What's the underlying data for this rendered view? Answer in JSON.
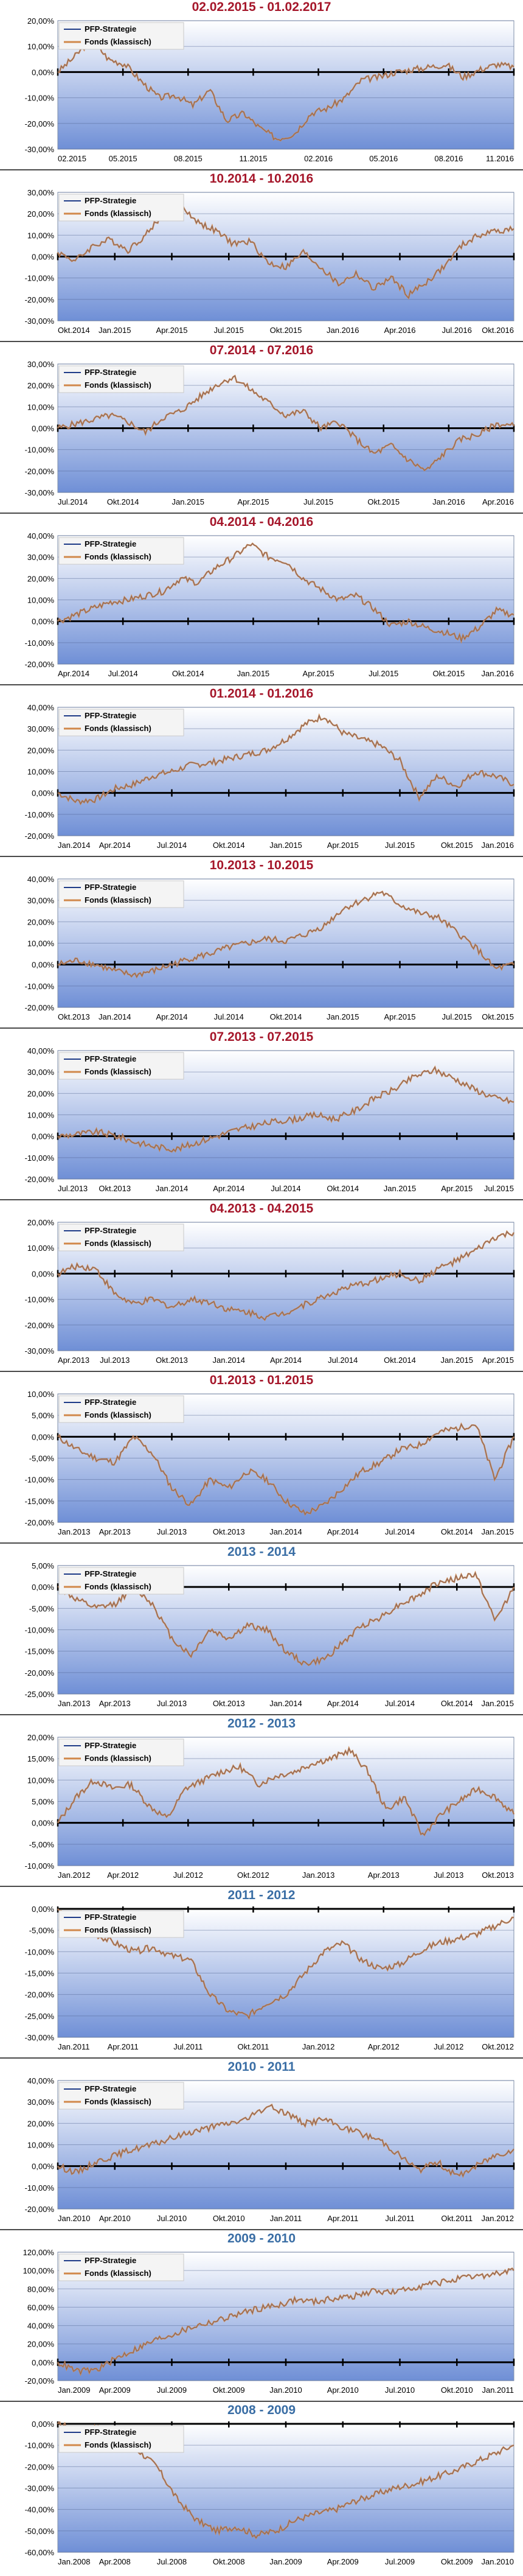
{
  "colors": {
    "red_title": "#a5162a",
    "blue_title": "#3a6ea5",
    "strategy": "#1f3c88",
    "fund": "#d1884a",
    "zero_axis": "#000000"
  },
  "legend": {
    "strategy": "PFP-Strategie",
    "fund": "Fonds (klassisch)"
  },
  "chart_data": [
    {
      "type": "line",
      "title": "02.02.2015 - 01.02.2017",
      "title_color": "red",
      "ylim": [
        -30,
        20
      ],
      "yticks": [
        "20,00%",
        "10,00%",
        "0,00%",
        "-10,00%",
        "-20,00%",
        "-30,00%"
      ],
      "xticks": [
        "02.2015",
        "05.2015",
        "08.2015",
        "11.2015",
        "02.2016",
        "05.2016",
        "08.2016",
        "11.2016"
      ],
      "series": [
        {
          "name": "Fonds (klassisch)",
          "values": [
            0,
            6,
            13,
            5,
            3,
            -4,
            -10,
            -9,
            -13,
            -7,
            -19,
            -16,
            -22,
            -26,
            -24,
            -16,
            -14,
            -10,
            -3,
            -2,
            0,
            1,
            2,
            3,
            -2,
            1,
            3,
            2
          ]
        }
      ]
    },
    {
      "type": "line",
      "title": "10.2014 - 10.2016",
      "title_color": "red",
      "ylim": [
        -30,
        30
      ],
      "yticks": [
        "30,00%",
        "20,00%",
        "10,00%",
        "0,00%",
        "-10,00%",
        "-20,00%",
        "-30,00%"
      ],
      "xticks": [
        "Okt.2014",
        "Jan.2015",
        "Apr.2015",
        "Jul.2015",
        "Okt.2015",
        "Jan.2016",
        "Apr.2016",
        "Jul.2016",
        "Okt.2016"
      ],
      "series": [
        {
          "name": "Fonds (klassisch)",
          "values": [
            2,
            -2,
            5,
            8,
            3,
            10,
            20,
            24,
            16,
            12,
            6,
            7,
            -3,
            -5,
            2,
            -5,
            -13,
            -8,
            -15,
            -10,
            -18,
            -12,
            -5,
            5,
            10,
            12,
            13
          ]
        }
      ]
    },
    {
      "type": "line",
      "title": "07.2014 - 07.2016",
      "title_color": "red",
      "ylim": [
        -30,
        30
      ],
      "yticks": [
        "30,00%",
        "20,00%",
        "10,00%",
        "0,00%",
        "-10,00%",
        "-20,00%",
        "-30,00%"
      ],
      "xticks": [
        "Jul.2014",
        "Okt.2014",
        "Jan.2015",
        "Apr.2015",
        "Jul.2015",
        "Okt.2015",
        "Jan.2016",
        "Apr.2016"
      ],
      "series": [
        {
          "name": "Fonds (klassisch)",
          "values": [
            0,
            2,
            4,
            6,
            3,
            -2,
            5,
            8,
            14,
            20,
            24,
            18,
            12,
            6,
            8,
            0,
            3,
            -5,
            -12,
            -8,
            -15,
            -20,
            -12,
            -5,
            -3,
            2,
            1
          ]
        }
      ]
    },
    {
      "type": "line",
      "title": "04.2014 - 04.2016",
      "title_color": "red",
      "ylim": [
        -20,
        40
      ],
      "yticks": [
        "40,00%",
        "30,00%",
        "20,00%",
        "10,00%",
        "0,00%",
        "-10,00%",
        "-20,00%"
      ],
      "xticks": [
        "Apr.2014",
        "Jul.2014",
        "Okt.2014",
        "Jan.2015",
        "Apr.2015",
        "Jul.2015",
        "Okt.2015",
        "Jan.2016"
      ],
      "series": [
        {
          "name": "Fonds (klassisch)",
          "values": [
            0,
            3,
            6,
            9,
            10,
            12,
            14,
            20,
            18,
            25,
            30,
            36,
            30,
            28,
            20,
            15,
            10,
            12,
            6,
            -2,
            0,
            -3,
            -5,
            -8,
            -3,
            5,
            3
          ]
        }
      ]
    },
    {
      "type": "line",
      "title": "01.2014 - 01.2016",
      "title_color": "red",
      "ylim": [
        -20,
        40
      ],
      "yticks": [
        "40,00%",
        "30,00%",
        "20,00%",
        "10,00%",
        "0,00%",
        "-10,00%",
        "-20,00%"
      ],
      "xticks": [
        "Jan.2014",
        "Apr.2014",
        "Jul.2014",
        "Okt.2014",
        "Jan.2015",
        "Apr.2015",
        "Jul.2015",
        "Okt.2015",
        "Jan.2016"
      ],
      "series": [
        {
          "name": "Fonds (klassisch)",
          "values": [
            0,
            -4,
            -3,
            2,
            4,
            8,
            10,
            13,
            14,
            16,
            18,
            20,
            25,
            32,
            36,
            28,
            25,
            22,
            15,
            -2,
            8,
            3,
            10,
            8,
            4
          ]
        }
      ]
    },
    {
      "type": "line",
      "title": "10.2013 - 10.2015",
      "title_color": "red",
      "ylim": [
        -20,
        40
      ],
      "yticks": [
        "40,00%",
        "30,00%",
        "20,00%",
        "10,00%",
        "0,00%",
        "-10,00%",
        "-20,00%"
      ],
      "xticks": [
        "Okt.2013",
        "Jan.2014",
        "Apr.2014",
        "Jul.2014",
        "Okt.2014",
        "Jan.2015",
        "Apr.2015",
        "Jul.2015",
        "Okt.2015"
      ],
      "series": [
        {
          "name": "Fonds (klassisch)",
          "values": [
            0,
            2,
            0,
            -3,
            -5,
            -3,
            0,
            3,
            5,
            8,
            10,
            12,
            11,
            14,
            18,
            26,
            30,
            34,
            28,
            24,
            22,
            15,
            8,
            -2,
            0
          ]
        }
      ]
    },
    {
      "type": "line",
      "title": "07.2013 - 07.2015",
      "title_color": "red",
      "ylim": [
        -20,
        40
      ],
      "yticks": [
        "40,00%",
        "30,00%",
        "20,00%",
        "10,00%",
        "0,00%",
        "-10,00%",
        "-20,00%"
      ],
      "xticks": [
        "Jul.2013",
        "Okt.2013",
        "Jan.2014",
        "Apr.2014",
        "Jul.2014",
        "Okt.2014",
        "Jan.2015",
        "Apr.2015",
        "Jul.2015"
      ],
      "series": [
        {
          "name": "Fonds (klassisch)",
          "values": [
            0,
            1,
            2,
            0,
            -3,
            -5,
            -6,
            -3,
            0,
            3,
            5,
            7,
            8,
            10,
            8,
            12,
            18,
            22,
            28,
            31,
            27,
            22,
            18,
            16
          ]
        }
      ]
    },
    {
      "type": "line",
      "title": "04.2013 - 04.2015",
      "title_color": "red",
      "ylim": [
        -30,
        20
      ],
      "yticks": [
        "20,00%",
        "10,00%",
        "0,00%",
        "-10,00%",
        "-20,00%",
        "-30,00%"
      ],
      "xticks": [
        "Apr.2013",
        "Jul.2013",
        "Okt.2013",
        "Jan.2014",
        "Apr.2014",
        "Jul.2014",
        "Okt.2014",
        "Jan.2015",
        "Apr.2015"
      ],
      "series": [
        {
          "name": "Fonds (klassisch)",
          "values": [
            0,
            3,
            2,
            -8,
            -12,
            -10,
            -13,
            -10,
            -11,
            -14,
            -15,
            -17,
            -15,
            -12,
            -9,
            -6,
            -4,
            -2,
            0,
            -3,
            2,
            5,
            9,
            14,
            16
          ]
        }
      ]
    },
    {
      "type": "line",
      "title": "01.2013 - 01.2015",
      "title_color": "red",
      "ylim": [
        -20,
        10
      ],
      "yticks": [
        "10,00%",
        "5,00%",
        "0,00%",
        "-5,00%",
        "-10,00%",
        "-15,00%",
        "-20,00%"
      ],
      "xticks": [
        "Jan.2013",
        "Apr.2013",
        "Jul.2013",
        "Okt.2013",
        "Jan.2014",
        "Apr.2014",
        "Jul.2014",
        "Okt.2014",
        "Jan.2015"
      ],
      "series": [
        {
          "name": "Fonds (klassisch)",
          "values": [
            0,
            -3,
            -5,
            -6,
            0,
            -4,
            -12,
            -16,
            -10,
            -12,
            -8,
            -10,
            -15,
            -18,
            -16,
            -12,
            -8,
            -6,
            -3,
            -2,
            1,
            2,
            3,
            -10,
            0
          ]
        }
      ]
    },
    {
      "type": "line",
      "title": "2013 - 2014",
      "title_color": "blue",
      "ylim": [
        -25,
        5
      ],
      "yticks": [
        "5,00%",
        "0,00%",
        "-5,00%",
        "-10,00%",
        "-15,00%",
        "-20,00%",
        "-25,00%"
      ],
      "xticks": [
        "Jan.2013",
        "Apr.2013",
        "Jul.2013",
        "Okt.2013",
        "Jan.2014",
        "Apr.2014",
        "Jul.2014",
        "Okt.2014",
        "Jan.2015"
      ],
      "series": [
        {
          "name": "Fonds (klassisch)",
          "values": [
            0,
            -3,
            -5,
            -4,
            0,
            -4,
            -12,
            -16,
            -10,
            -12,
            -9,
            -10,
            -15,
            -18,
            -17,
            -13,
            -9,
            -7,
            -4,
            -2,
            1,
            2,
            3,
            -8,
            0
          ]
        }
      ]
    },
    {
      "type": "line",
      "title": "2012 - 2013",
      "title_color": "blue",
      "ylim": [
        -10,
        20
      ],
      "yticks": [
        "20,00%",
        "15,00%",
        "10,00%",
        "5,00%",
        "0,00%",
        "-5,00%",
        "-10,00%"
      ],
      "xticks": [
        "Jan.2012",
        "Apr.2012",
        "Jul.2012",
        "Okt.2012",
        "Jan.2013",
        "Apr.2013",
        "Jul.2013",
        "Okt.2013"
      ],
      "series": [
        {
          "name": "Fonds (klassisch)",
          "values": [
            0,
            6,
            10,
            8,
            9,
            4,
            1,
            8,
            10,
            12,
            13,
            9,
            11,
            12,
            14,
            15,
            17,
            12,
            3,
            6,
            -3,
            2,
            5,
            8,
            6,
            2
          ]
        }
      ]
    },
    {
      "type": "line",
      "title": "2011 - 2012",
      "title_color": "blue",
      "ylim": [
        -30,
        0
      ],
      "yticks": [
        "0,00%",
        "-5,00%",
        "-10,00%",
        "-15,00%",
        "-20,00%",
        "-25,00%",
        "-30,00%"
      ],
      "xticks": [
        "Jan.2011",
        "Apr.2011",
        "Jul.2011",
        "Okt.2011",
        "Jan.2012",
        "Apr.2012",
        "Jul.2012",
        "Okt.2012"
      ],
      "series": [
        {
          "name": "Fonds (klassisch)",
          "values": [
            0,
            -4,
            -6,
            -8,
            -10,
            -9,
            -11,
            -12,
            -20,
            -24,
            -25,
            -22,
            -20,
            -15,
            -10,
            -8,
            -12,
            -14,
            -13,
            -10,
            -8,
            -7,
            -6,
            -4,
            -2
          ]
        }
      ]
    },
    {
      "type": "line",
      "title": "2010 - 2011",
      "title_color": "blue",
      "ylim": [
        -20,
        40
      ],
      "yticks": [
        "40,00%",
        "30,00%",
        "20,00%",
        "10,00%",
        "0,00%",
        "-10,00%",
        "-20,00%"
      ],
      "xticks": [
        "Jan.2010",
        "Apr.2010",
        "Jul.2010",
        "Okt.2010",
        "Jan.2011",
        "Apr.2011",
        "Jul.2011",
        "Okt.2011",
        "Jan.2012"
      ],
      "series": [
        {
          "name": "Fonds (klassisch)",
          "values": [
            0,
            -3,
            2,
            5,
            8,
            10,
            13,
            16,
            18,
            20,
            22,
            28,
            25,
            20,
            22,
            18,
            15,
            12,
            5,
            -2,
            2,
            -5,
            0,
            5,
            8
          ]
        }
      ]
    },
    {
      "type": "line",
      "title": "2009 - 2010",
      "title_color": "blue",
      "ylim": [
        -20,
        120
      ],
      "yticks": [
        "120,00%",
        "100,00%",
        "80,00%",
        "60,00%",
        "40,00%",
        "20,00%",
        "0,00%",
        "-20,00%"
      ],
      "xticks": [
        "Jan.2009",
        "Apr.2009",
        "Jul.2009",
        "Okt.2009",
        "Jan.2010",
        "Apr.2010",
        "Jul.2010",
        "Okt.2010",
        "Jan.2011"
      ],
      "series": [
        {
          "name": "Fonds (klassisch)",
          "values": [
            0,
            -10,
            -8,
            5,
            15,
            25,
            32,
            40,
            45,
            52,
            58,
            62,
            68,
            66,
            70,
            72,
            78,
            76,
            82,
            86,
            90,
            93,
            96,
            100
          ]
        }
      ]
    },
    {
      "type": "line",
      "title": "2008 - 2009",
      "title_color": "blue",
      "ylim": [
        -60,
        0
      ],
      "yticks": [
        "0,00%",
        "-10,00%",
        "-20,00%",
        "-30,00%",
        "-40,00%",
        "-50,00%",
        "-60,00%"
      ],
      "xticks": [
        "Jan.2008",
        "Apr.2008",
        "Jul.2008",
        "Okt.2008",
        "Jan.2009",
        "Apr.2009",
        "Jul.2009",
        "Okt.2009",
        "Jan.2010"
      ],
      "series": [
        {
          "name": "Fonds (klassisch)",
          "values": [
            0,
            -3,
            -2,
            -6,
            -12,
            -20,
            -35,
            -45,
            -50,
            -48,
            -52,
            -50,
            -45,
            -42,
            -40,
            -36,
            -33,
            -30,
            -28,
            -25,
            -22,
            -18,
            -14,
            -10
          ]
        }
      ]
    }
  ]
}
